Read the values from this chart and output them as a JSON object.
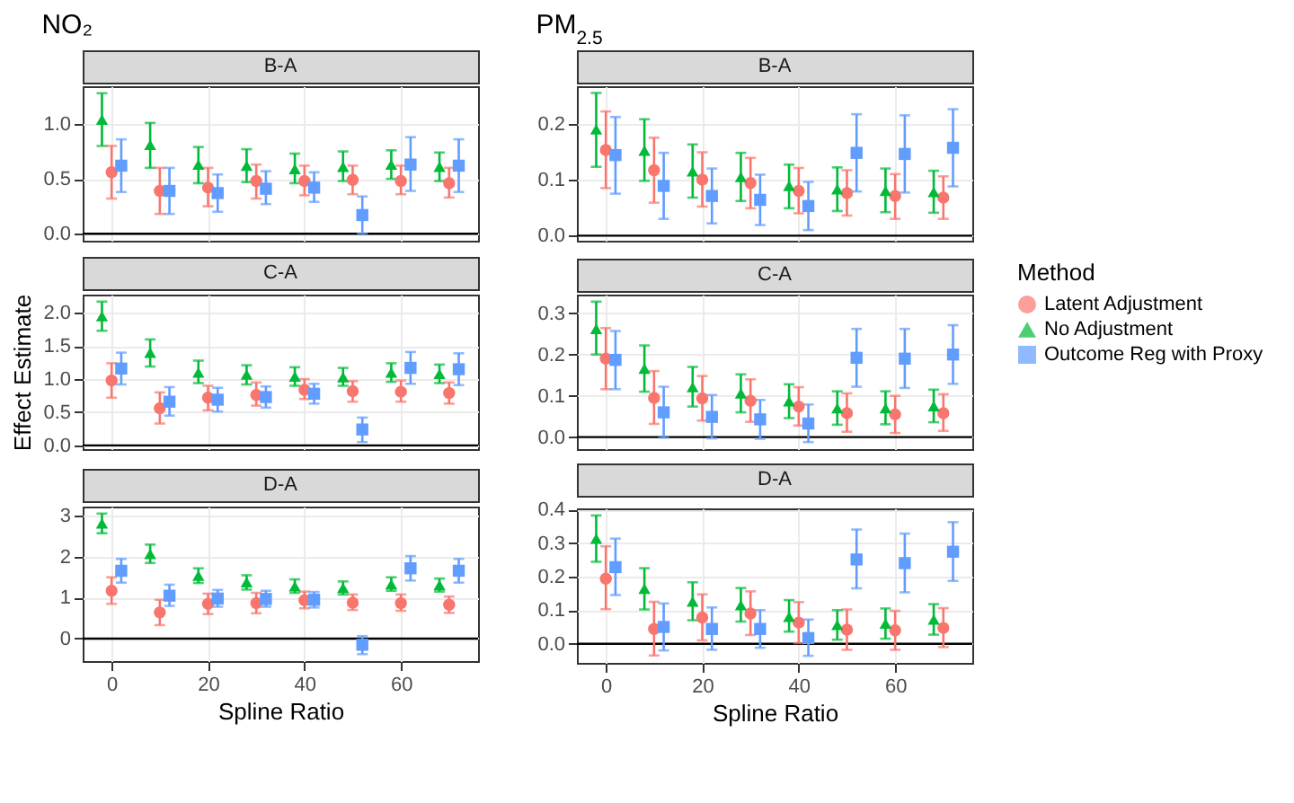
{
  "chart_data": [
    {
      "type": "scatter",
      "title": "NO₂",
      "subtitle": "B-A",
      "legend": "right",
      "legend_title": "Method",
      "xlim": [
        -6,
        76
      ],
      "xticks": [
        0,
        20,
        40,
        60
      ],
      "ylim": [
        -0.064,
        1.344
      ],
      "yticks": [
        {
          "value": 0,
          "label": "0.0"
        },
        0.5,
        {
          "value": 1,
          "label": "1.0"
        }
      ],
      "grid": true,
      "tick_labels": "y",
      "ref_lines": [
        {
          "axis": "y",
          "value": 0,
          "color": "#000000"
        }
      ],
      "series": [
        {
          "name": "Latent Adjustment",
          "color": "#F8766D",
          "marker": "circle",
          "x": [
            0,
            10,
            20,
            30,
            40,
            50,
            60,
            70
          ],
          "values": [
            0.56,
            0.39,
            0.42,
            0.48,
            0.48,
            0.49,
            0.48,
            0.46
          ],
          "errors": [
            [
              0.32,
              0.8
            ],
            [
              0.18,
              0.6
            ],
            [
              0.25,
              0.6
            ],
            [
              0.32,
              0.63
            ],
            [
              0.35,
              0.62
            ],
            [
              0.36,
              0.62
            ],
            [
              0.36,
              0.62
            ],
            [
              0.33,
              0.6
            ]
          ]
        },
        {
          "name": "No Adjustment",
          "color": "#00BA38",
          "marker": "triangle",
          "x": [
            -2,
            8,
            18,
            28,
            38,
            48,
            58,
            68
          ],
          "values": [
            1.04,
            0.81,
            0.63,
            0.62,
            0.59,
            0.61,
            0.63,
            0.61
          ],
          "errors": [
            [
              0.8,
              1.28
            ],
            [
              0.6,
              1.01
            ],
            [
              0.46,
              0.79
            ],
            [
              0.47,
              0.77
            ],
            [
              0.46,
              0.73
            ],
            [
              0.48,
              0.75
            ],
            [
              0.5,
              0.76
            ],
            [
              0.48,
              0.74
            ]
          ]
        },
        {
          "name": "Outcome Reg with Proxy",
          "color": "#619CFF",
          "marker": "square",
          "x": [
            2,
            12,
            22,
            32,
            42,
            52,
            62,
            72
          ],
          "values": [
            0.62,
            0.39,
            0.37,
            0.41,
            0.42,
            0.17,
            0.63,
            0.62
          ],
          "errors": [
            [
              0.38,
              0.86
            ],
            [
              0.18,
              0.6
            ],
            [
              0.2,
              0.54
            ],
            [
              0.27,
              0.57
            ],
            [
              0.29,
              0.56
            ],
            [
              0,
              0.34
            ],
            [
              0.39,
              0.88
            ],
            [
              0.38,
              0.86
            ]
          ]
        }
      ]
    },
    {
      "type": "scatter",
      "title": "PM$_{2.5}$",
      "subtitle": "B-A",
      "xlim": [
        -6,
        76
      ],
      "xticks": [
        0,
        20,
        40,
        60
      ],
      "ylim": [
        -0.009,
        0.267
      ],
      "yticks": [
        {
          "value": 0,
          "label": "0.0"
        },
        0.1,
        0.2
      ],
      "grid": true,
      "tick_labels": "y",
      "ref_lines": [
        {
          "axis": "y",
          "value": 0,
          "color": "#000000"
        }
      ],
      "series": [
        {
          "name": "Latent Adjustment",
          "color": "#F8766D",
          "marker": "circle",
          "x": [
            0,
            10,
            20,
            30,
            40,
            50,
            60,
            70
          ],
          "values": [
            0.153,
            0.117,
            0.1,
            0.094,
            0.08,
            0.076,
            0.071,
            0.068
          ],
          "errors": [
            [
              0.085,
              0.222
            ],
            [
              0.059,
              0.175
            ],
            [
              0.052,
              0.149
            ],
            [
              0.049,
              0.139
            ],
            [
              0.04,
              0.121
            ],
            [
              0.036,
              0.117
            ],
            [
              0.03,
              0.11
            ],
            [
              0.03,
              0.106
            ]
          ]
        },
        {
          "name": "No Adjustment",
          "color": "#00BA38",
          "marker": "triangle",
          "x": [
            -2,
            8,
            18,
            28,
            38,
            48,
            58,
            68
          ],
          "values": [
            0.19,
            0.152,
            0.115,
            0.105,
            0.089,
            0.083,
            0.08,
            0.078
          ],
          "errors": [
            [
              0.123,
              0.255
            ],
            [
              0.098,
              0.208
            ],
            [
              0.068,
              0.163
            ],
            [
              0.062,
              0.148
            ],
            [
              0.049,
              0.127
            ],
            [
              0.044,
              0.122
            ],
            [
              0.042,
              0.12
            ],
            [
              0.041,
              0.116
            ]
          ]
        },
        {
          "name": "Outcome Reg with Proxy",
          "color": "#619CFF",
          "marker": "square",
          "x": [
            2,
            12,
            22,
            32,
            42,
            52,
            62,
            72
          ],
          "values": [
            0.144,
            0.089,
            0.071,
            0.064,
            0.053,
            0.148,
            0.146,
            0.157
          ],
          "errors": [
            [
              0.075,
              0.212
            ],
            [
              0.03,
              0.148
            ],
            [
              0.022,
              0.12
            ],
            [
              0.019,
              0.109
            ],
            [
              0.01,
              0.096
            ],
            [
              0.079,
              0.217
            ],
            [
              0.077,
              0.215
            ],
            [
              0.088,
              0.226
            ]
          ]
        }
      ]
    },
    {
      "type": "scatter",
      "subtitle": "C-A",
      "ylabel": "Effect Estimate",
      "xlim": [
        -6,
        76
      ],
      "xticks": [
        0,
        20,
        40,
        60
      ],
      "ylim": [
        -0.056,
        2.276
      ],
      "yticks": [
        {
          "value": 0,
          "label": "0.0"
        },
        0.5,
        {
          "value": 1,
          "label": "1.0"
        },
        1.5,
        {
          "value": 2,
          "label": "2.0"
        }
      ],
      "grid": true,
      "tick_labels": "y",
      "ref_lines": [
        {
          "axis": "y",
          "value": 0,
          "color": "#000000"
        }
      ],
      "series": [
        {
          "name": "Latent Adjustment",
          "color": "#F8766D",
          "marker": "circle",
          "x": [
            0,
            10,
            20,
            30,
            40,
            50,
            60,
            70
          ],
          "values": [
            0.98,
            0.56,
            0.72,
            0.76,
            0.84,
            0.82,
            0.81,
            0.79
          ],
          "errors": [
            [
              0.72,
              1.24
            ],
            [
              0.33,
              0.8
            ],
            [
              0.53,
              0.9
            ],
            [
              0.6,
              0.95
            ],
            [
              0.7,
              1.0
            ],
            [
              0.66,
              0.97
            ],
            [
              0.66,
              0.98
            ],
            [
              0.63,
              0.95
            ]
          ]
        },
        {
          "name": "No Adjustment",
          "color": "#00BA38",
          "marker": "triangle",
          "x": [
            -2,
            8,
            18,
            28,
            38,
            48,
            58,
            68
          ],
          "values": [
            1.95,
            1.4,
            1.1,
            1.07,
            1.04,
            1.03,
            1.1,
            1.08
          ],
          "errors": [
            [
              1.73,
              2.17
            ],
            [
              1.19,
              1.6
            ],
            [
              0.94,
              1.28
            ],
            [
              0.92,
              1.21
            ],
            [
              0.9,
              1.18
            ],
            [
              0.9,
              1.17
            ],
            [
              0.96,
              1.24
            ],
            [
              0.94,
              1.22
            ]
          ]
        },
        {
          "name": "Outcome Reg with Proxy",
          "color": "#619CFF",
          "marker": "square",
          "x": [
            2,
            12,
            22,
            32,
            42,
            52,
            62,
            72
          ],
          "values": [
            1.16,
            0.66,
            0.69,
            0.73,
            0.78,
            0.24,
            1.17,
            1.15
          ],
          "errors": [
            [
              0.92,
              1.4
            ],
            [
              0.45,
              0.88
            ],
            [
              0.51,
              0.87
            ],
            [
              0.57,
              0.89
            ],
            [
              0.63,
              0.93
            ],
            [
              0.05,
              0.42
            ],
            [
              0.93,
              1.41
            ],
            [
              0.91,
              1.39
            ]
          ]
        }
      ]
    },
    {
      "type": "scatter",
      "subtitle": "C-A",
      "xlim": [
        -6,
        76
      ],
      "xticks": [
        0,
        20,
        40,
        60
      ],
      "ylim": [
        -0.029,
        0.345
      ],
      "yticks": [
        {
          "value": 0,
          "label": "0.0"
        },
        0.1,
        0.2,
        0.3
      ],
      "grid": true,
      "tick_labels": "y",
      "ref_lines": [
        {
          "axis": "y",
          "value": 0,
          "color": "#000000"
        }
      ],
      "series": [
        {
          "name": "Latent Adjustment",
          "color": "#F8766D",
          "marker": "circle",
          "x": [
            0,
            10,
            20,
            30,
            40,
            50,
            60,
            70
          ],
          "values": [
            0.19,
            0.095,
            0.094,
            0.088,
            0.074,
            0.058,
            0.055,
            0.058
          ],
          "errors": [
            [
              0.116,
              0.264
            ],
            [
              0.032,
              0.16
            ],
            [
              0.04,
              0.148
            ],
            [
              0.037,
              0.14
            ],
            [
              0.028,
              0.121
            ],
            [
              0.013,
              0.106
            ],
            [
              0.01,
              0.1
            ],
            [
              0.015,
              0.104
            ]
          ]
        },
        {
          "name": "No Adjustment",
          "color": "#00BA38",
          "marker": "triangle",
          "x": [
            -2,
            8,
            18,
            28,
            38,
            48,
            58,
            68
          ],
          "values": [
            0.262,
            0.166,
            0.121,
            0.106,
            0.087,
            0.07,
            0.07,
            0.075
          ],
          "errors": [
            [
              0.2,
              0.328
            ],
            [
              0.11,
              0.222
            ],
            [
              0.074,
              0.17
            ],
            [
              0.06,
              0.152
            ],
            [
              0.046,
              0.128
            ],
            [
              0.03,
              0.111
            ],
            [
              0.031,
              0.111
            ],
            [
              0.036,
              0.115
            ]
          ]
        },
        {
          "name": "Outcome Reg with Proxy",
          "color": "#619CFF",
          "marker": "square",
          "x": [
            2,
            12,
            22,
            32,
            42,
            52,
            62,
            72
          ],
          "values": [
            0.187,
            0.06,
            0.049,
            0.043,
            0.033,
            0.192,
            0.19,
            0.2
          ],
          "errors": [
            [
              0.116,
              0.257
            ],
            [
              -0.001,
              0.122
            ],
            [
              -0.003,
              0.102
            ],
            [
              -0.004,
              0.09
            ],
            [
              -0.012,
              0.079
            ],
            [
              0.122,
              0.262
            ],
            [
              0.119,
              0.262
            ],
            [
              0.129,
              0.271
            ]
          ]
        }
      ]
    },
    {
      "type": "scatter",
      "subtitle": "D-A",
      "xlabel": "Spline Ratio",
      "xlim": [
        -6,
        76
      ],
      "xticks": [
        0,
        20,
        40,
        60
      ],
      "ylim": [
        -0.55,
        3.23
      ],
      "yticks": [
        0,
        1,
        2,
        3
      ],
      "grid": true,
      "ref_lines": [
        {
          "axis": "y",
          "value": 0,
          "color": "#000000"
        }
      ],
      "series": [
        {
          "name": "Latent Adjustment",
          "color": "#F8766D",
          "marker": "circle",
          "x": [
            0,
            10,
            20,
            30,
            40,
            50,
            60,
            70
          ],
          "values": [
            1.17,
            0.64,
            0.85,
            0.87,
            0.94,
            0.88,
            0.87,
            0.83
          ],
          "errors": [
            [
              0.85,
              1.5
            ],
            [
              0.33,
              0.95
            ],
            [
              0.6,
              1.1
            ],
            [
              0.62,
              1.12
            ],
            [
              0.74,
              1.15
            ],
            [
              0.7,
              1.08
            ],
            [
              0.68,
              1.08
            ],
            [
              0.63,
              1.03
            ]
          ]
        },
        {
          "name": "No Adjustment",
          "color": "#00BA38",
          "marker": "triangle",
          "x": [
            -2,
            8,
            18,
            28,
            38,
            48,
            58,
            68
          ],
          "values": [
            2.82,
            2.07,
            1.54,
            1.38,
            1.28,
            1.24,
            1.33,
            1.31
          ],
          "errors": [
            [
              2.58,
              3.06
            ],
            [
              1.85,
              2.3
            ],
            [
              1.36,
              1.72
            ],
            [
              1.2,
              1.55
            ],
            [
              1.12,
              1.45
            ],
            [
              1.08,
              1.4
            ],
            [
              1.17,
              1.5
            ],
            [
              1.15,
              1.47
            ]
          ]
        },
        {
          "name": "Outcome Reg with Proxy",
          "color": "#619CFF",
          "marker": "square",
          "x": [
            2,
            12,
            22,
            32,
            42,
            52,
            62,
            72
          ],
          "values": [
            1.66,
            1.05,
            0.98,
            0.97,
            0.95,
            -0.15,
            1.72,
            1.66
          ],
          "errors": [
            [
              1.37,
              1.95
            ],
            [
              0.8,
              1.32
            ],
            [
              0.78,
              1.19
            ],
            [
              0.78,
              1.17
            ],
            [
              0.76,
              1.14
            ],
            [
              -0.38,
              0.06
            ],
            [
              1.42,
              2.02
            ],
            [
              1.37,
              1.95
            ]
          ]
        }
      ]
    },
    {
      "type": "scatter",
      "subtitle": "D-A",
      "xlabel": "Spline Ratio",
      "xlim": [
        -6,
        76
      ],
      "xticks": [
        0,
        20,
        40,
        60
      ],
      "ylim": [
        -0.057,
        0.403
      ],
      "yticks": [
        {
          "value": 0,
          "label": "0.0"
        },
        0.1,
        0.2,
        0.3,
        0.4
      ],
      "grid": true,
      "ref_lines": [
        {
          "axis": "y",
          "value": 0,
          "color": "#000000"
        }
      ],
      "series": [
        {
          "name": "Latent Adjustment",
          "color": "#F8766D",
          "marker": "circle",
          "x": [
            0,
            10,
            20,
            30,
            40,
            50,
            60,
            70
          ],
          "values": [
            0.194,
            0.044,
            0.078,
            0.09,
            0.063,
            0.042,
            0.04,
            0.047
          ],
          "errors": [
            [
              0.103,
              0.29
            ],
            [
              -0.035,
              0.125
            ],
            [
              0.01,
              0.147
            ],
            [
              0.026,
              0.156
            ],
            [
              0.002,
              0.124
            ],
            [
              -0.018,
              0.102
            ],
            [
              -0.018,
              0.098
            ],
            [
              -0.01,
              0.106
            ]
          ]
        },
        {
          "name": "No Adjustment",
          "color": "#00BA38",
          "marker": "triangle",
          "x": [
            -2,
            8,
            18,
            28,
            38,
            48,
            58,
            68
          ],
          "values": [
            0.313,
            0.164,
            0.126,
            0.115,
            0.08,
            0.056,
            0.06,
            0.072
          ],
          "errors": [
            [
              0.244,
              0.382
            ],
            [
              0.102,
              0.225
            ],
            [
              0.07,
              0.183
            ],
            [
              0.066,
              0.166
            ],
            [
              0.036,
              0.13
            ],
            [
              0.012,
              0.1
            ],
            [
              0.015,
              0.105
            ],
            [
              0.027,
              0.118
            ]
          ]
        },
        {
          "name": "Outcome Reg with Proxy",
          "color": "#619CFF",
          "marker": "square",
          "x": [
            2,
            12,
            22,
            32,
            42,
            52,
            62,
            72
          ],
          "values": [
            0.228,
            0.05,
            0.044,
            0.044,
            0.017,
            0.251,
            0.24,
            0.274
          ],
          "errors": [
            [
              0.145,
              0.313
            ],
            [
              -0.02,
              0.12
            ],
            [
              -0.018,
              0.108
            ],
            [
              -0.012,
              0.1
            ],
            [
              -0.036,
              0.072
            ],
            [
              0.165,
              0.34
            ],
            [
              0.153,
              0.328
            ],
            [
              0.187,
              0.362
            ]
          ]
        }
      ]
    }
  ]
}
